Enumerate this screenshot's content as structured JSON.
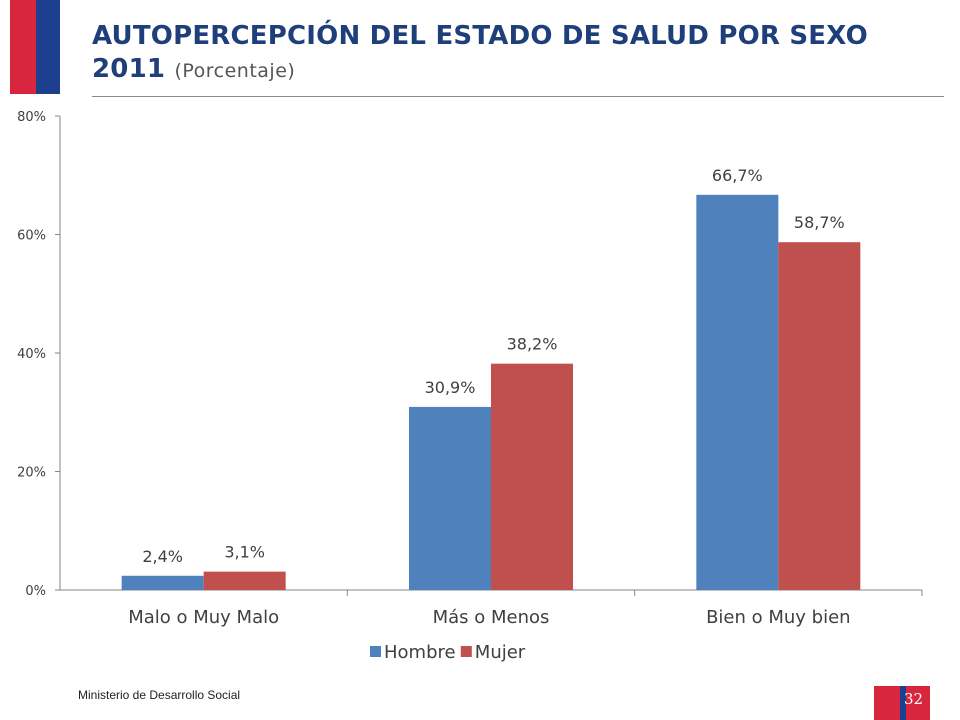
{
  "slide": {
    "title_main": "AUTOPERCEPCIÓN DEL ESTADO DE SALUD POR SEXO 2011",
    "title_sub": "(Porcentaje)",
    "footer": "Ministerio de Desarrollo Social",
    "page_number": "32"
  },
  "colors": {
    "accent_red": "#d7263d",
    "accent_blue": "#1d3f8f",
    "title": "#1f3f7a",
    "hombre": "#4f81bd",
    "mujer": "#c0504d"
  },
  "chart_data": {
    "type": "bar",
    "title": "AUTOPERCEPCIÓN DEL ESTADO DE SALUD POR SEXO 2011",
    "xlabel": "",
    "ylabel": "",
    "categories": [
      "Malo o Muy Malo",
      "Más o Menos",
      "Bien o Muy bien"
    ],
    "series": [
      {
        "name": "Hombre",
        "values": [
          2.4,
          30.9,
          66.7
        ],
        "labels": [
          "2,4%",
          "30,9%",
          "66,7%"
        ],
        "color": "#4f81bd"
      },
      {
        "name": "Mujer",
        "values": [
          3.1,
          38.2,
          58.7
        ],
        "labels": [
          "3,1%",
          "38,2%",
          "58,7%"
        ],
        "color": "#c0504d"
      }
    ],
    "ylim": [
      0,
      80
    ],
    "yticks": [
      0,
      20,
      40,
      60,
      80
    ],
    "ytick_labels": [
      "0%",
      "20%",
      "40%",
      "60%",
      "80%"
    ],
    "grid": false,
    "legend_position": "bottom"
  }
}
